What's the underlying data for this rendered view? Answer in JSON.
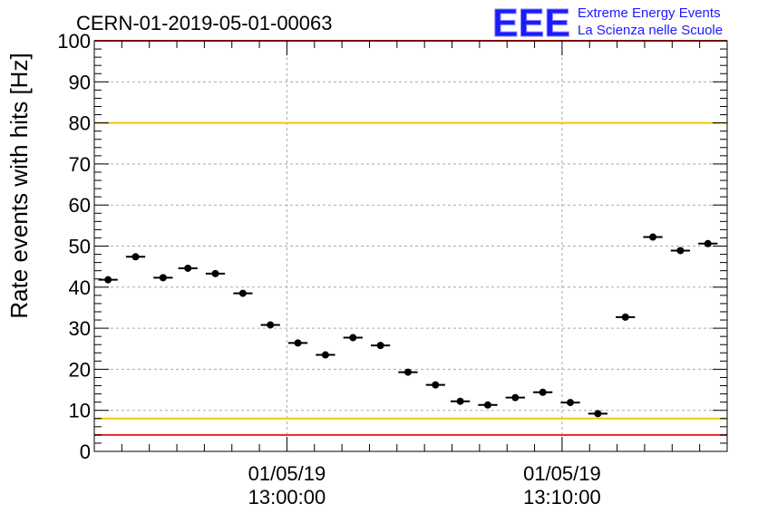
{
  "chart_data": {
    "type": "scatter",
    "title": "CERN-01-2019-05-01-00063",
    "xlabel": "",
    "ylabel": "Rate events with hits [Hz]",
    "ylim": [
      0,
      100
    ],
    "xlim_minutes": [
      -7,
      16
    ],
    "y_ticks": [
      "0",
      "10",
      "20",
      "30",
      "40",
      "50",
      "60",
      "70",
      "80",
      "90",
      "100"
    ],
    "x_ticks": [
      {
        "t": 0,
        "date": "01/05/19",
        "time": "13:00:00"
      },
      {
        "t": 10,
        "date": "01/05/19",
        "time": "13:10:00"
      }
    ],
    "grid": true,
    "reference_lines": [
      {
        "y": 100,
        "color": "#e8251e"
      },
      {
        "y": 80,
        "color": "#f0c800"
      },
      {
        "y": 8,
        "color": "#f0c800"
      },
      {
        "y": 4,
        "color": "#e8251e"
      }
    ],
    "series": [
      {
        "marker_color": "#000000",
        "x_bin_width_minutes": 0.7,
        "x": [
          -6.5,
          -5.5,
          -4.5,
          -3.6,
          -2.6,
          -1.6,
          -0.6,
          0.4,
          1.4,
          2.4,
          3.4,
          4.4,
          5.4,
          6.3,
          7.3,
          8.3,
          9.3,
          10.3,
          11.3,
          12.3,
          13.3,
          14.3,
          15.3
        ],
        "y": [
          41.8,
          47.4,
          42.3,
          44.6,
          43.3,
          38.5,
          30.8,
          26.4,
          23.5,
          27.7,
          25.8,
          19.3,
          16.2,
          12.2,
          11.3,
          13.1,
          14.4,
          11.9,
          9.2,
          32.7,
          52.2,
          48.9,
          50.6
        ]
      }
    ]
  },
  "logo": {
    "mark": "EEE",
    "line1": "Extreme Energy Events",
    "line2": "La Scienza nelle Scuole",
    "color": "#1a1aff"
  }
}
